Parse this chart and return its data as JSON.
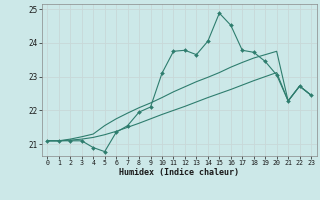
{
  "xlabel": "Humidex (Indice chaleur)",
  "bg_color": "#cce8e8",
  "grid_color": "#d4e8e8",
  "line_color": "#2e7d6e",
  "xlim": [
    -0.5,
    23.5
  ],
  "ylim": [
    20.65,
    25.15
  ],
  "yticks": [
    21,
    22,
    23,
    24,
    25
  ],
  "xticks": [
    0,
    1,
    2,
    3,
    4,
    5,
    6,
    7,
    8,
    9,
    10,
    11,
    12,
    13,
    14,
    15,
    16,
    17,
    18,
    19,
    20,
    21,
    22,
    23
  ],
  "line1_y": [
    21.1,
    21.1,
    21.1,
    21.1,
    20.9,
    20.78,
    21.35,
    21.55,
    21.95,
    22.1,
    23.1,
    23.75,
    23.78,
    23.65,
    24.05,
    24.88,
    24.52,
    23.78,
    23.72,
    23.45,
    23.05,
    22.28,
    22.72,
    22.45
  ],
  "line2_y": [
    21.1,
    21.1,
    21.15,
    21.22,
    21.3,
    21.55,
    21.75,
    21.92,
    22.08,
    22.22,
    22.38,
    22.55,
    22.7,
    22.85,
    22.98,
    23.12,
    23.28,
    23.42,
    23.55,
    23.65,
    23.75,
    22.28,
    22.72,
    22.45
  ],
  "line3_y": [
    21.1,
    21.1,
    21.12,
    21.15,
    21.2,
    21.28,
    21.38,
    21.5,
    21.62,
    21.75,
    21.88,
    22.0,
    22.12,
    22.25,
    22.38,
    22.5,
    22.62,
    22.75,
    22.88,
    23.0,
    23.12,
    22.28,
    22.72,
    22.45
  ]
}
